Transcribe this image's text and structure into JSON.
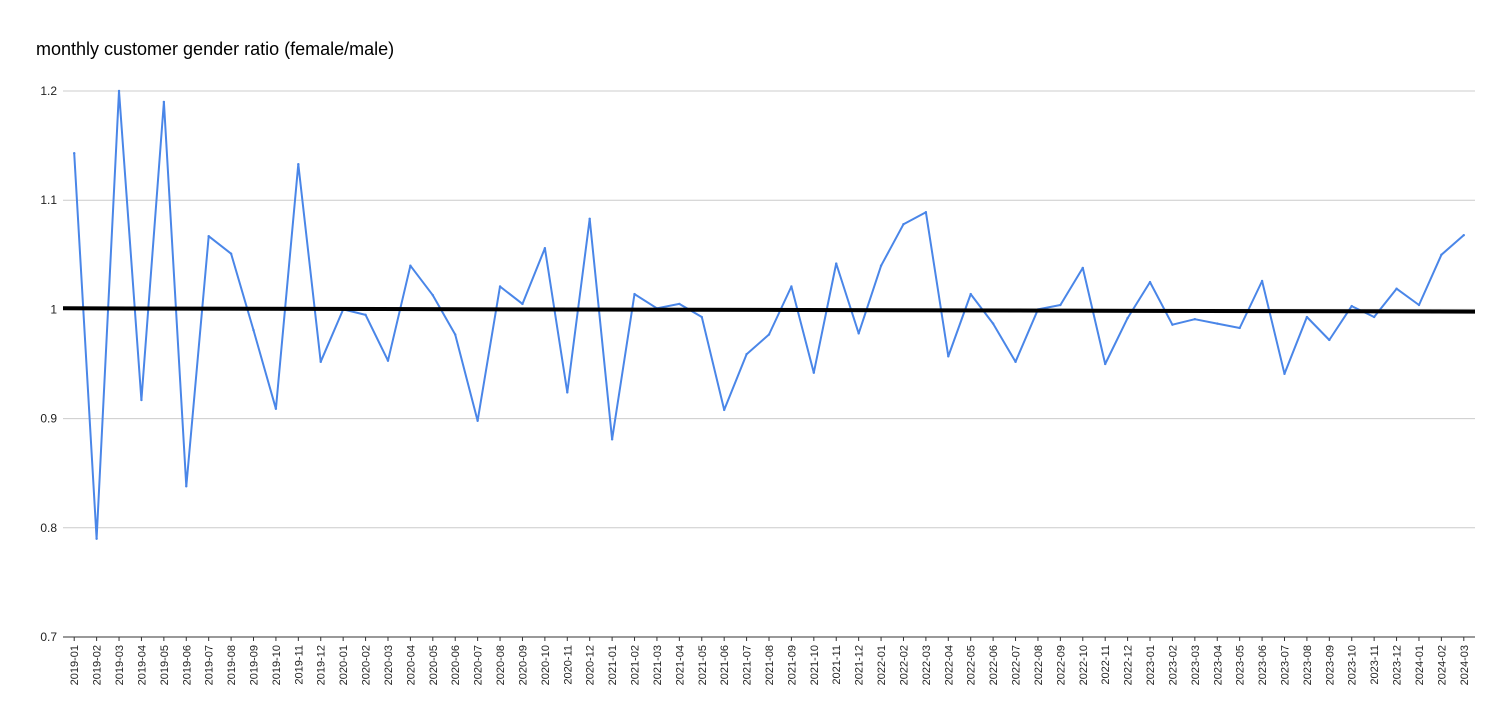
{
  "chart_data": {
    "type": "line",
    "title": "monthly customer gender ratio (female/male)",
    "xlabel": "",
    "ylabel": "",
    "ylim": [
      0.7,
      1.2
    ],
    "yticks": [
      "0.7",
      "0.8",
      "0.9",
      "1",
      "1.1",
      "1.2"
    ],
    "grid": true,
    "legend": "none",
    "categories": [
      "2019-01",
      "2019-02",
      "2019-03",
      "2019-04",
      "2019-05",
      "2019-06",
      "2019-07",
      "2019-08",
      "2019-09",
      "2019-10",
      "2019-11",
      "2019-12",
      "2020-01",
      "2020-02",
      "2020-03",
      "2020-04",
      "2020-05",
      "2020-06",
      "2020-07",
      "2020-08",
      "2020-09",
      "2020-10",
      "2020-11",
      "2020-12",
      "2021-01",
      "2021-02",
      "2021-03",
      "2021-04",
      "2021-05",
      "2021-06",
      "2021-07",
      "2021-08",
      "2021-09",
      "2021-10",
      "2021-11",
      "2021-12",
      "2022-01",
      "2022-02",
      "2022-03",
      "2022-04",
      "2022-05",
      "2022-06",
      "2022-07",
      "2022-08",
      "2022-09",
      "2022-10",
      "2022-11",
      "2022-12",
      "2023-01",
      "2023-02",
      "2023-03",
      "2023-04",
      "2023-05",
      "2023-06",
      "2023-07",
      "2023-08",
      "2023-09",
      "2023-10",
      "2023-11",
      "2023-12",
      "2024-01",
      "2024-02",
      "2024-03"
    ],
    "series": [
      {
        "color": "#4a86e8",
        "values": [
          1.143,
          0.79,
          1.2,
          0.917,
          1.19,
          0.838,
          1.067,
          1.051,
          0.981,
          0.909,
          1.133,
          0.952,
          1.0,
          0.995,
          0.953,
          1.04,
          1.013,
          0.977,
          0.898,
          1.021,
          1.005,
          1.056,
          0.924,
          1.083,
          0.881,
          1.014,
          1.001,
          1.005,
          0.993,
          0.908,
          0.959,
          0.977,
          1.021,
          0.942,
          1.042,
          0.978,
          1.04,
          1.078,
          1.089,
          0.957,
          1.014,
          0.987,
          0.952,
          1.0,
          1.004,
          1.038,
          0.95,
          0.992,
          1.025,
          0.986,
          0.991,
          0.987,
          0.983,
          1.026,
          0.941,
          0.993,
          0.972,
          1.003,
          0.993,
          1.019,
          1.004,
          1.05,
          1.068
        ]
      },
      {
        "type": "trendline",
        "color": "#000000",
        "start": 1.001,
        "end": 0.998
      }
    ]
  }
}
